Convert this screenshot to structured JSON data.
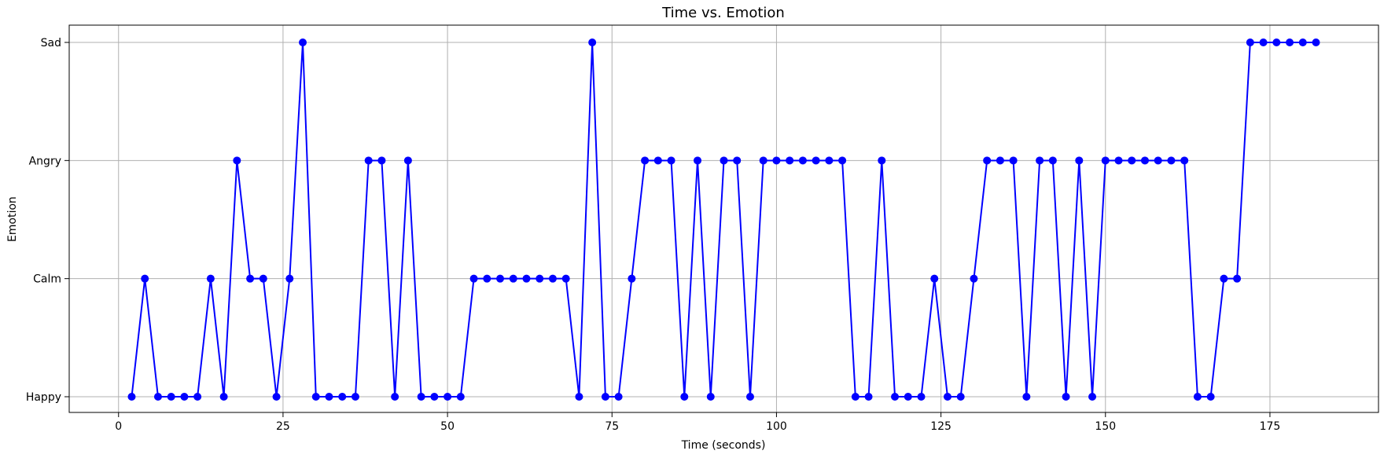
{
  "chart_data": {
    "type": "line",
    "title": "Time vs. Emotion",
    "xlabel": "Time (seconds)",
    "ylabel": "Emotion",
    "xlim": [
      -7.5,
      191.5
    ],
    "x_ticks": [
      0,
      25,
      50,
      75,
      100,
      125,
      150,
      175
    ],
    "categories_y": [
      "Happy",
      "Calm",
      "Angry",
      "Sad"
    ],
    "grid": true,
    "series": [
      {
        "color": "#0000ff",
        "marker": "circle",
        "x": [
          2,
          4,
          6,
          8,
          10,
          12,
          14,
          16,
          18,
          20,
          22,
          24,
          26,
          28,
          30,
          32,
          34,
          36,
          38,
          40,
          42,
          44,
          46,
          48,
          50,
          52,
          54,
          56,
          58,
          60,
          62,
          64,
          66,
          68,
          70,
          72,
          74,
          76,
          78,
          80,
          82,
          84,
          86,
          88,
          90,
          92,
          94,
          96,
          98,
          100,
          102,
          104,
          106,
          108,
          110,
          112,
          114,
          116,
          118,
          120,
          122,
          124,
          126,
          128,
          130,
          132,
          134,
          136,
          138,
          140,
          142,
          144,
          146,
          148,
          150,
          152,
          154,
          156,
          158,
          160,
          162,
          164,
          166,
          168,
          170,
          172,
          174,
          176,
          178,
          180,
          182
        ],
        "y": [
          "Happy",
          "Calm",
          "Happy",
          "Happy",
          "Happy",
          "Happy",
          "Calm",
          "Happy",
          "Angry",
          "Calm",
          "Calm",
          "Happy",
          "Calm",
          "Sad",
          "Happy",
          "Happy",
          "Happy",
          "Happy",
          "Angry",
          "Angry",
          "Happy",
          "Angry",
          "Happy",
          "Happy",
          "Happy",
          "Happy",
          "Calm",
          "Calm",
          "Calm",
          "Calm",
          "Calm",
          "Calm",
          "Calm",
          "Calm",
          "Happy",
          "Sad",
          "Happy",
          "Happy",
          "Calm",
          "Angry",
          "Angry",
          "Angry",
          "Happy",
          "Angry",
          "Happy",
          "Angry",
          "Angry",
          "Happy",
          "Angry",
          "Angry",
          "Angry",
          "Angry",
          "Angry",
          "Angry",
          "Angry",
          "Happy",
          "Happy",
          "Angry",
          "Happy",
          "Happy",
          "Happy",
          "Calm",
          "Happy",
          "Happy",
          "Calm",
          "Angry",
          "Angry",
          "Angry",
          "Happy",
          "Angry",
          "Angry",
          "Happy",
          "Angry",
          "Happy",
          "Angry",
          "Angry",
          "Angry",
          "Angry",
          "Angry",
          "Angry",
          "Angry",
          "Happy",
          "Happy",
          "Calm",
          "Calm",
          "Sad",
          "Sad",
          "Sad",
          "Sad",
          "Sad",
          "Sad"
        ]
      }
    ]
  }
}
